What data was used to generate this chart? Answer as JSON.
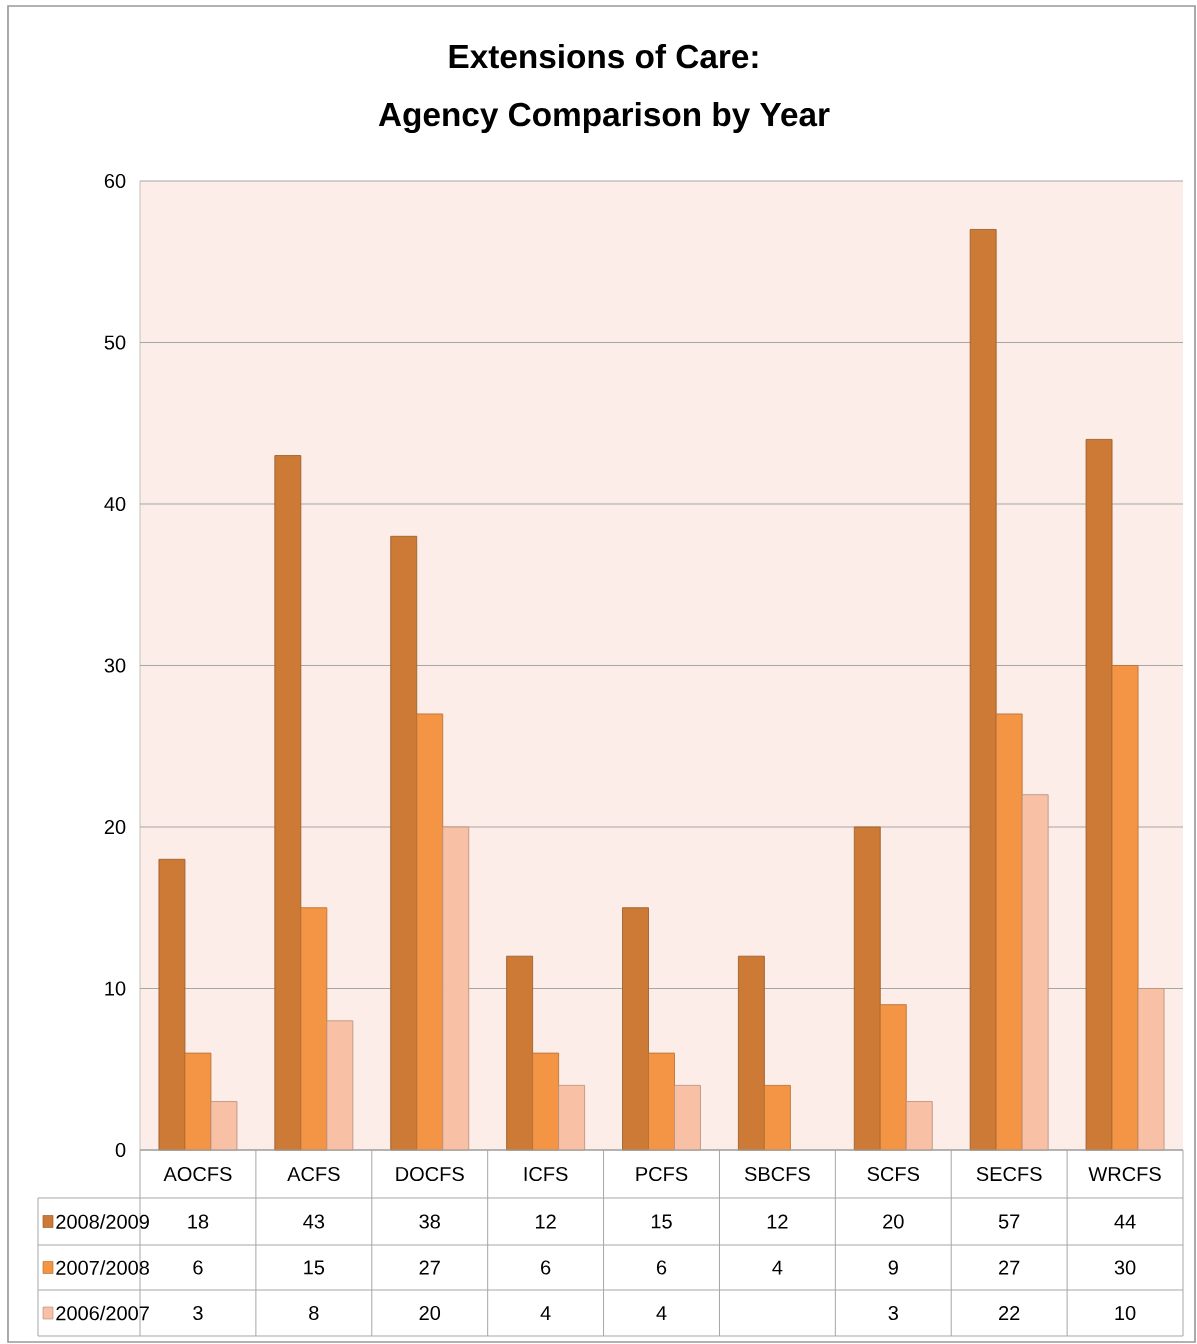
{
  "chart_data": {
    "type": "bar",
    "title": "Extensions of Care:",
    "subtitle": "Agency Comparison by Year",
    "categories": [
      "AOCFS",
      "ACFS",
      "DOCFS",
      "ICFS",
      "PCFS",
      "SBCFS",
      "SCFS",
      "SECFS",
      "WRCFS"
    ],
    "series": [
      {
        "name": "2008/2009",
        "color": "#cc7a36",
        "values": [
          18,
          43,
          38,
          12,
          15,
          12,
          20,
          57,
          44
        ]
      },
      {
        "name": "2007/2008",
        "color": "#f39545",
        "values": [
          6,
          15,
          27,
          6,
          6,
          4,
          9,
          27,
          30
        ]
      },
      {
        "name": "2006/2007",
        "color": "#f8c0a5",
        "values": [
          3,
          8,
          20,
          4,
          4,
          null,
          3,
          22,
          10
        ]
      }
    ],
    "ylim": [
      0,
      60
    ],
    "yticks": [
      0,
      10,
      20,
      30,
      40,
      50,
      60
    ],
    "grid": "y",
    "legend": "bottom",
    "data_labels": true
  }
}
